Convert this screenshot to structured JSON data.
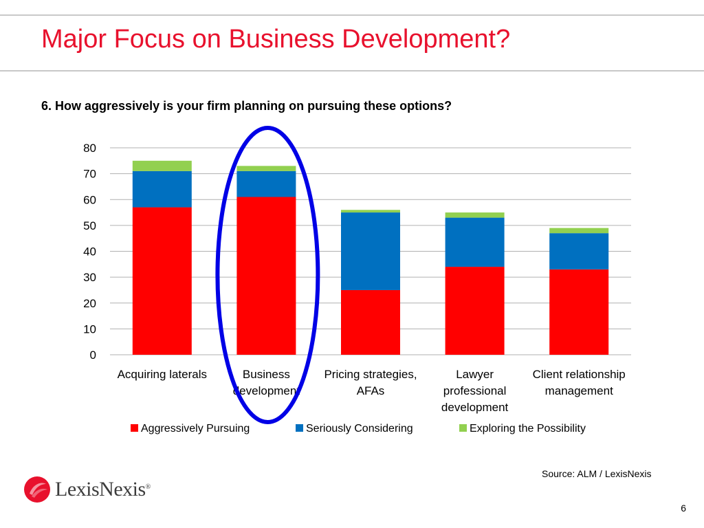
{
  "slide": {
    "title": "Major Focus on Business Development?",
    "question": "6.  How aggressively is your firm planning on pursuing these options?",
    "source": "Source: ALM / LexisNexis",
    "page_number": "6"
  },
  "logo": {
    "text": "LexisNexis",
    "mark": "®",
    "mark_color": "#e8112d"
  },
  "highlight": {
    "category": "Business development",
    "color": "#0000e6",
    "shape": "ellipse"
  },
  "chart_data": {
    "type": "bar",
    "stacked": true,
    "categories": [
      [
        "Acquiring laterals"
      ],
      [
        "Business",
        "development"
      ],
      [
        "Pricing strategies,",
        "AFAs"
      ],
      [
        "Lawyer",
        "professional",
        "development"
      ],
      [
        "Client relationship",
        "management"
      ]
    ],
    "series": [
      {
        "name": "Aggressively Pursuing",
        "color": "#ff0000",
        "values": [
          57,
          61,
          25,
          34,
          33
        ]
      },
      {
        "name": "Seriously Considering",
        "color": "#0070c0",
        "values": [
          14,
          10,
          30,
          19,
          14
        ]
      },
      {
        "name": "Exploring the Possibility",
        "color": "#92d050",
        "values": [
          4,
          2,
          1,
          2,
          2
        ]
      }
    ],
    "ylim": [
      0,
      80
    ],
    "yticks": [
      "0",
      "10",
      "20",
      "30",
      "40",
      "50",
      "60",
      "70",
      "80"
    ],
    "grid": true,
    "legend": "bottom"
  }
}
